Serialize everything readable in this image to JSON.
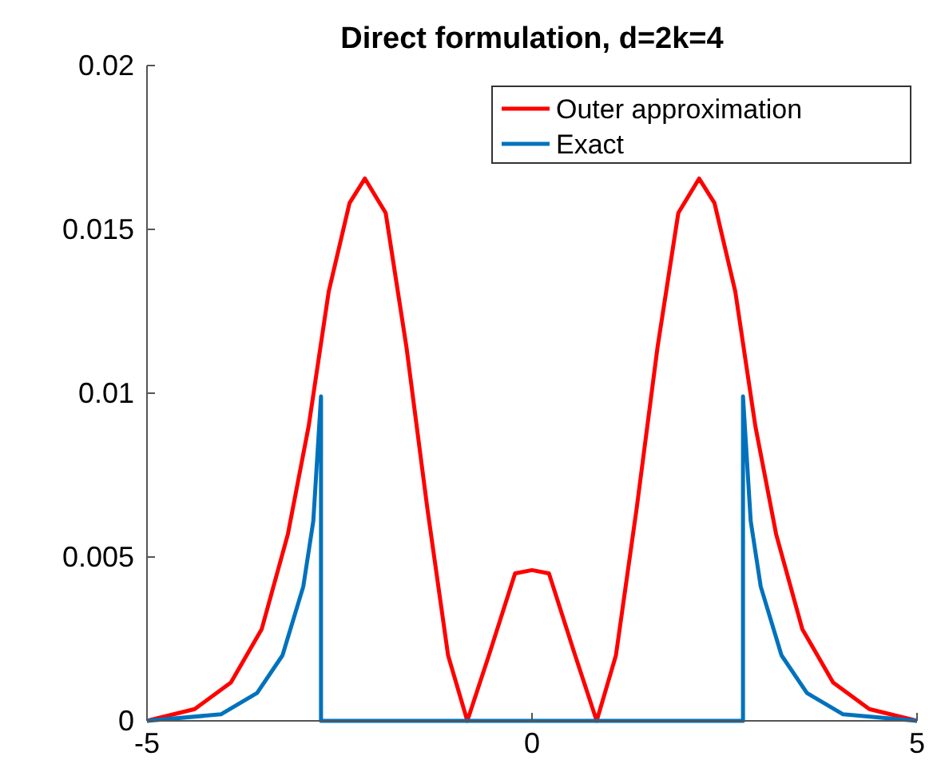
{
  "chart_data": {
    "type": "line",
    "title": "Direct formulation, d=2k=4",
    "xlim": [
      -5,
      5
    ],
    "xticks": [
      -5,
      0,
      5
    ],
    "ylim": [
      0,
      0.02
    ],
    "yticks": [
      0,
      0.005,
      0.01,
      0.015,
      0.02
    ],
    "legend": "top right",
    "grid": false,
    "line_style": "solid",
    "marker": "none",
    "series": [
      {
        "name": "Outer approximation",
        "color": "#ff0000",
        "x": [
          -5,
          -4.38,
          -3.91,
          -3.51,
          -3.17,
          -2.9,
          -2.64,
          -2.37,
          -2.17,
          -1.9,
          -1.63,
          -1.36,
          -1.09,
          -0.84,
          -0.56,
          -0.22,
          0,
          0.22,
          0.56,
          0.84,
          1.09,
          1.36,
          1.63,
          1.9,
          2.17,
          2.37,
          2.64,
          2.9,
          3.17,
          3.51,
          3.91,
          4.38,
          5
        ],
        "values": [
          0,
          0.00036,
          0.00117,
          0.0028,
          0.0057,
          0.009,
          0.0131,
          0.0158,
          0.01655,
          0.0155,
          0.0114,
          0.0065,
          0.002,
          0,
          0.002,
          0.0045,
          0.0046,
          0.0045,
          0.002,
          0,
          0.002,
          0.0065,
          0.0114,
          0.0155,
          0.01655,
          0.0158,
          0.0131,
          0.009,
          0.0057,
          0.0028,
          0.00117,
          0.00036,
          0
        ]
      },
      {
        "name": "Exact",
        "color": "#0072bd",
        "x": [
          -5,
          -4.04,
          -3.57,
          -3.24,
          -2.97,
          -2.84,
          -2.74,
          -2.74,
          2.74,
          2.74,
          2.84,
          2.97,
          3.24,
          3.57,
          4.04,
          5
        ],
        "values": [
          0,
          0.0002,
          0.00085,
          0.002,
          0.0041,
          0.0061,
          0.0099,
          0,
          0,
          0.0099,
          0.0061,
          0.0041,
          0.002,
          0.00085,
          0.0002,
          0
        ]
      }
    ]
  }
}
